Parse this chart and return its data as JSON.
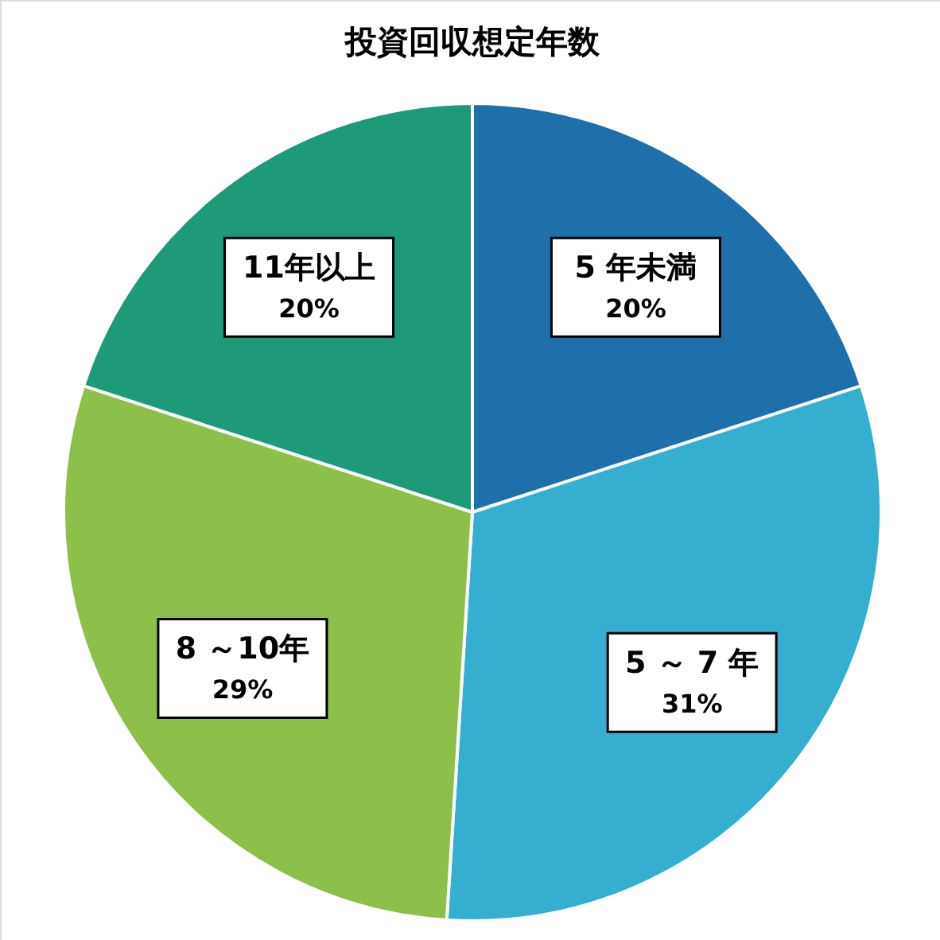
{
  "chart_data": {
    "type": "pie",
    "title": "投資回収想定年数",
    "categories": [
      "5 年未満",
      "5 ～ 7 年",
      "8 ～10年",
      "11年以上"
    ],
    "values": [
      20,
      31,
      29,
      20
    ],
    "value_labels": [
      "20%",
      "31%",
      "29%",
      "20%"
    ],
    "colors": [
      "#1f6faa",
      "#35aed0",
      "#8cc04a",
      "#1f9a78"
    ]
  }
}
